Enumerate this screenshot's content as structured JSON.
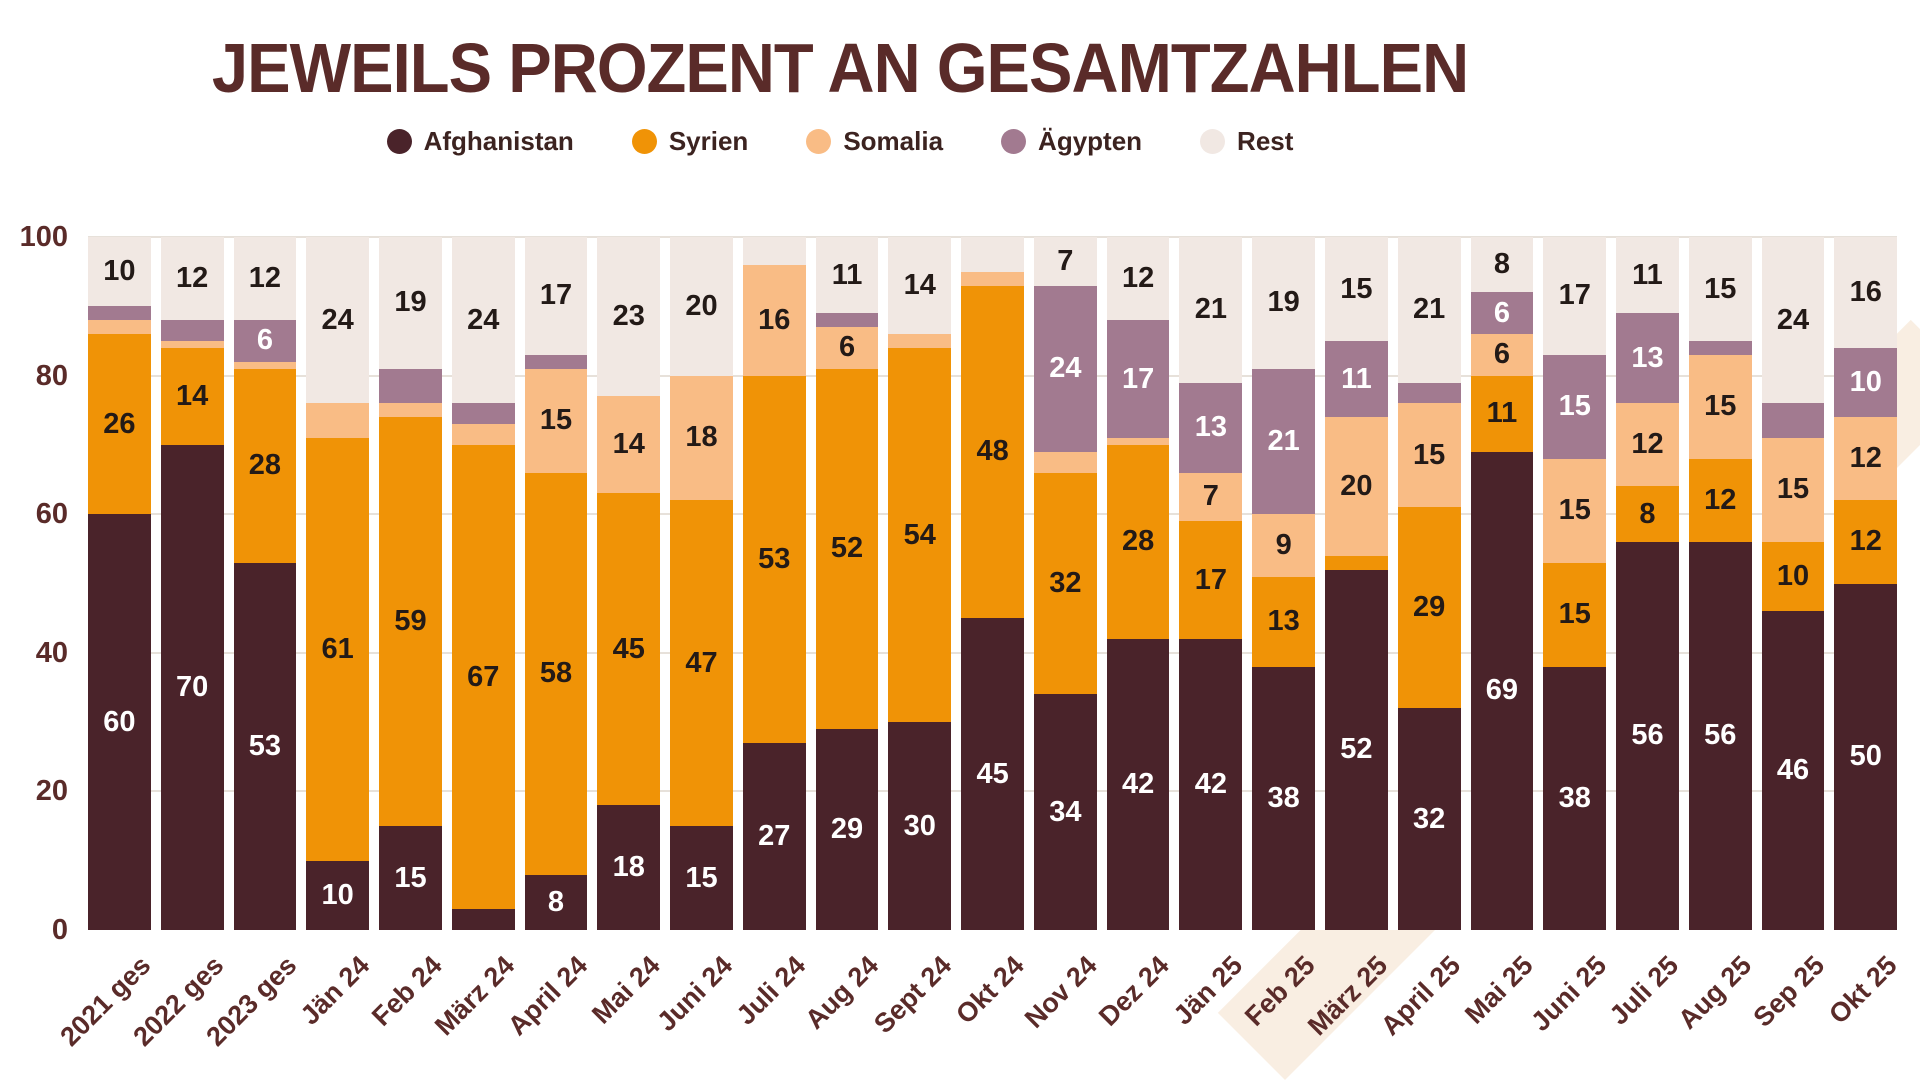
{
  "title": "JEWEILS PROZENT AN GESAMTZAHLEN",
  "legend": [
    {
      "label": "Afghanistan",
      "color": "#4a232a"
    },
    {
      "label": "Syrien",
      "color": "#f09306"
    },
    {
      "label": "Somalia",
      "color": "#f9bc85"
    },
    {
      "label": "Ägypten",
      "color": "#a27a90"
    },
    {
      "label": "Rest",
      "color": "#f1e8e3"
    }
  ],
  "colors": {
    "background": "#ffffff",
    "title_text": "#5a2b29",
    "axis_text": "#5a2b29",
    "gridline": "#e7e1da",
    "watermark": "#f7eadb",
    "label_dark": "#231a17",
    "label_light": "#ffffff"
  },
  "y_axis": {
    "ticks": [
      0,
      20,
      40,
      60,
      80,
      100
    ]
  },
  "chart_data": {
    "type": "bar",
    "stacked": true,
    "percent": true,
    "title": "JEWEILS PROZENT AN GESAMTZAHLEN",
    "xlabel": "",
    "ylabel": "",
    "ylim": [
      0,
      100
    ],
    "grid": true,
    "legend_position": "top",
    "label_min_value": 6,
    "categories": [
      "2021 ges",
      "2022 ges",
      "2023 ges",
      "Jän 24",
      "Feb 24",
      "März 24",
      "April 24",
      "Mai 24",
      "Juni 24",
      "Juli 24",
      "Aug 24",
      "Sept 24",
      "Okt 24",
      "Nov 24",
      "Dez 24",
      "Jän 25",
      "Feb 25",
      "März 25",
      "April 25",
      "Mai 25",
      "Juni 25",
      "Juli 25",
      "Aug 25",
      "Sep 25",
      "Okt 25"
    ],
    "series": [
      {
        "name": "Afghanistan",
        "color": "#4a232a",
        "label_color": "#ffffff",
        "values": [
          60,
          70,
          53,
          10,
          15,
          3,
          8,
          18,
          15,
          27,
          29,
          30,
          45,
          34,
          42,
          42,
          38,
          52,
          32,
          69,
          38,
          56,
          56,
          46,
          50
        ]
      },
      {
        "name": "Syrien",
        "color": "#f09306",
        "label_color": "#231a17",
        "values": [
          26,
          14,
          28,
          61,
          59,
          67,
          58,
          45,
          47,
          53,
          52,
          54,
          48,
          32,
          28,
          17,
          13,
          2,
          29,
          11,
          15,
          8,
          12,
          10,
          12
        ]
      },
      {
        "name": "Somalia",
        "color": "#f9bc85",
        "label_color": "#231a17",
        "values": [
          2,
          1,
          1,
          5,
          2,
          3,
          15,
          14,
          18,
          16,
          6,
          2,
          2,
          3,
          1,
          7,
          9,
          20,
          15,
          6,
          15,
          12,
          15,
          15,
          12
        ]
      },
      {
        "name": "Ägypten",
        "color": "#a27a90",
        "label_color": "#ffffff",
        "values": [
          2,
          3,
          6,
          0,
          5,
          3,
          2,
          0,
          0,
          0,
          2,
          0,
          0,
          24,
          17,
          13,
          21,
          11,
          3,
          6,
          15,
          13,
          2,
          5,
          10
        ]
      },
      {
        "name": "Rest",
        "color": "#f1e8e3",
        "label_color": "#231a17",
        "values": [
          10,
          12,
          12,
          24,
          19,
          24,
          17,
          23,
          20,
          4,
          11,
          14,
          5,
          7,
          12,
          21,
          19,
          15,
          21,
          8,
          17,
          11,
          15,
          24,
          16
        ]
      }
    ]
  }
}
